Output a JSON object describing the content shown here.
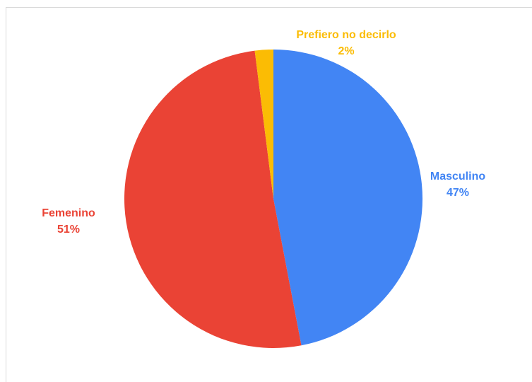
{
  "chart_data": {
    "type": "pie",
    "categories": [
      "Masculino",
      "Femenino",
      "Prefiero no decirlo"
    ],
    "values": [
      47,
      51,
      2
    ],
    "value_labels": [
      "47%",
      "51%",
      "2%"
    ],
    "colors": [
      "#4285f4",
      "#ea4335",
      "#fbbc04"
    ]
  }
}
